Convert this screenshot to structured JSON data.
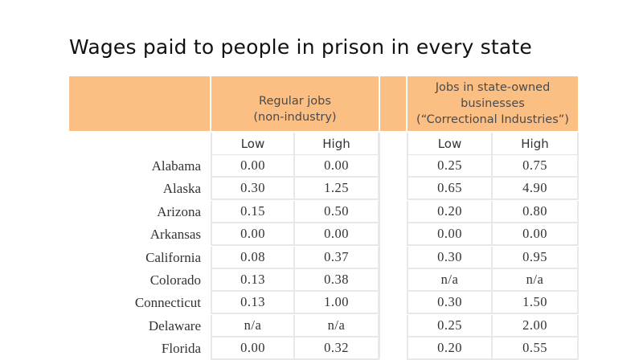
{
  "title": "Wages paid to people in prison in every state",
  "header": {
    "regular": [
      "Regular jobs",
      "(non-industry)"
    ],
    "industry": [
      "Jobs in state-owned",
      "businesses",
      "(“Correctional Industries”)"
    ],
    "regular_low": "Low",
    "regular_high": "High",
    "industry_low": "Low",
    "industry_high": "High"
  },
  "rows": [
    {
      "state": "Alabama",
      "reg_low": "0.00",
      "reg_high": "0.00",
      "ind_low": "0.25",
      "ind_high": "0.75"
    },
    {
      "state": "Alaska",
      "reg_low": "0.30",
      "reg_high": "1.25",
      "ind_low": "0.65",
      "ind_high": "4.90"
    },
    {
      "state": "Arizona",
      "reg_low": "0.15",
      "reg_high": "0.50",
      "ind_low": "0.20",
      "ind_high": "0.80"
    },
    {
      "state": "Arkansas",
      "reg_low": "0.00",
      "reg_high": "0.00",
      "ind_low": "0.00",
      "ind_high": "0.00"
    },
    {
      "state": "California",
      "reg_low": "0.08",
      "reg_high": "0.37",
      "ind_low": "0.30",
      "ind_high": "0.95"
    },
    {
      "state": "Colorado",
      "reg_low": "0.13",
      "reg_high": "0.38",
      "ind_low": "n/a",
      "ind_high": "n/a"
    },
    {
      "state": "Connecticut",
      "reg_low": "0.13",
      "reg_high": "1.00",
      "ind_low": "0.30",
      "ind_high": "1.50"
    },
    {
      "state": "Delaware",
      "reg_low": "n/a",
      "reg_high": "n/a",
      "ind_low": "0.25",
      "ind_high": "2.00"
    },
    {
      "state": "Florida",
      "reg_low": "0.00",
      "reg_high": "0.32",
      "ind_low": "0.20",
      "ind_high": "0.55"
    }
  ]
}
